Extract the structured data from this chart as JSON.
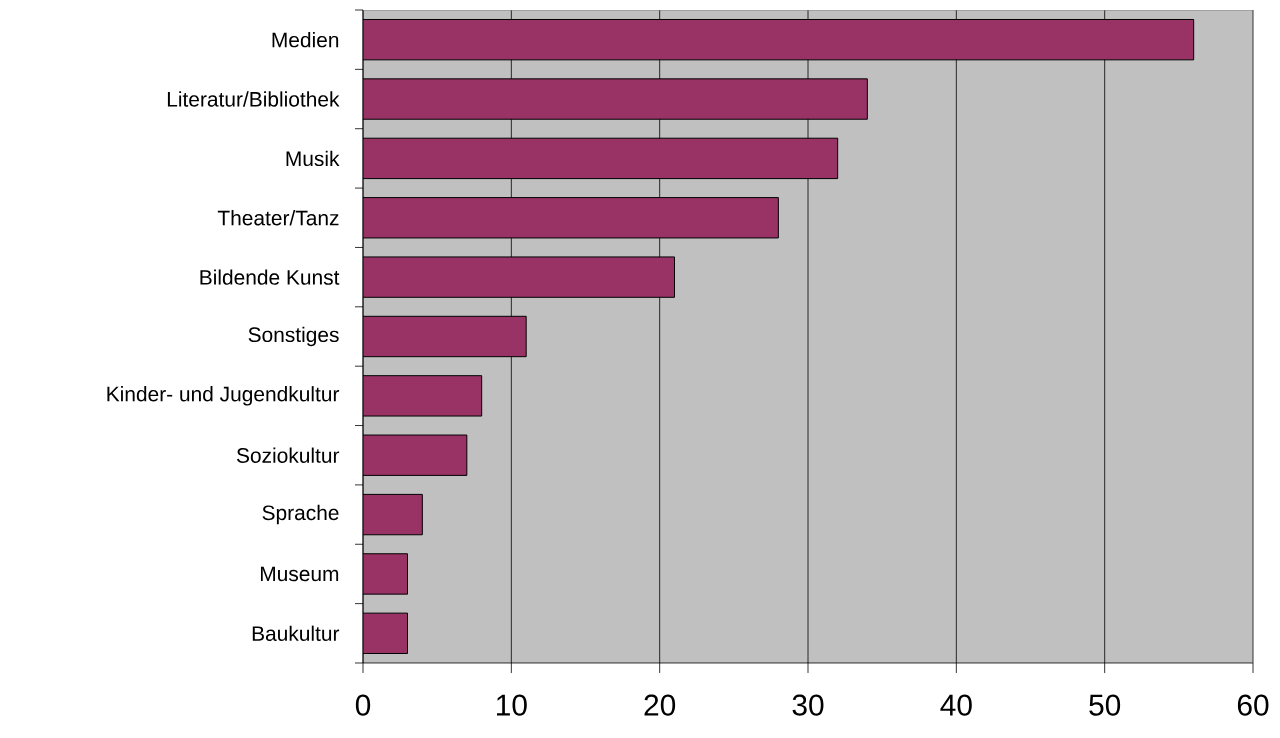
{
  "chart_data": {
    "type": "bar",
    "orientation": "horizontal",
    "categories": [
      "Medien",
      "Literatur/Bibliothek",
      "Musik",
      "Theater/Tanz",
      "Bildende Kunst",
      "Sonstiges",
      "Kinder- und Jugendkultur",
      "Soziokultur",
      "Sprache",
      "Museum",
      "Baukultur"
    ],
    "values": [
      56,
      34,
      32,
      28,
      21,
      11,
      8,
      7,
      4,
      3,
      3
    ],
    "color": "#993366",
    "xlim": [
      0,
      60
    ],
    "xticks": [
      0,
      10,
      20,
      30,
      40,
      50,
      60
    ],
    "grid": "x"
  }
}
